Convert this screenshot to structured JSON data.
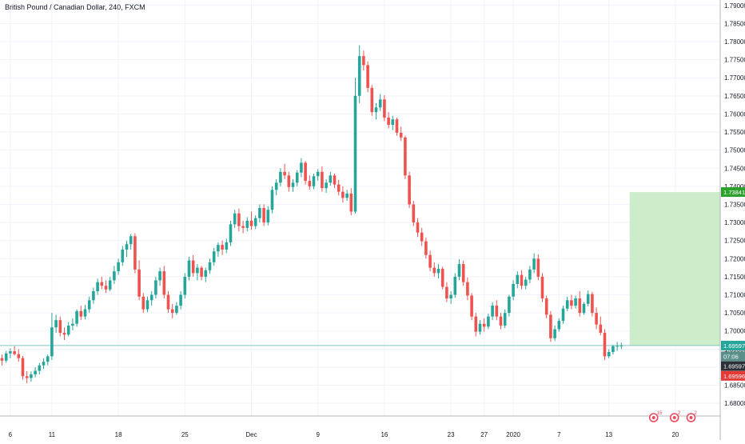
{
  "chart_title": "British Pound / Canadian Dollar, 240, FXCM",
  "colors": {
    "up": "#26a69a",
    "down": "#ef5350",
    "grid": "#f0f3fa",
    "axis": "#b2b5be",
    "text": "#131722",
    "zone": "#c8ebc4",
    "target": "#2ca02c",
    "event": "#e84a5f"
  },
  "chart_data": {
    "type": "candlestick",
    "title": "British Pound / Canadian Dollar, 240, FXCM",
    "ylim": [
      1.6765,
      1.7915
    ],
    "y_ticks": [
      "1.79000",
      "1.78500",
      "1.78000",
      "1.77500",
      "1.77000",
      "1.76500",
      "1.76000",
      "1.75500",
      "1.75000",
      "1.74500",
      "1.74000",
      "1.73500",
      "1.73000",
      "1.72500",
      "1.72000",
      "1.71500",
      "1.71000",
      "1.70500",
      "1.70000",
      "1.69500",
      "1.69000",
      "1.68500",
      "1.68000"
    ],
    "x_ticks": [
      {
        "label": "6",
        "index": 2
      },
      {
        "label": "11",
        "index": 12
      },
      {
        "label": "18",
        "index": 28
      },
      {
        "label": "25",
        "index": 44
      },
      {
        "label": "Dec",
        "index": 60
      },
      {
        "label": "9",
        "index": 76
      },
      {
        "label": "16",
        "index": 92
      },
      {
        "label": "23",
        "index": 108
      },
      {
        "label": "27",
        "index": 116
      },
      {
        "label": "2020",
        "index": 123
      },
      {
        "label": "7",
        "index": 134
      },
      {
        "label": "13",
        "index": 146
      },
      {
        "label": "20",
        "index": 162
      }
    ],
    "candle_count": 150,
    "candles": [
      [
        1.6925,
        1.6935,
        1.6905,
        1.6918
      ],
      [
        1.6918,
        1.6945,
        1.6912,
        1.6938
      ],
      [
        1.6938,
        1.6952,
        1.6925,
        1.6944
      ],
      [
        1.6944,
        1.6958,
        1.6932,
        1.6936
      ],
      [
        1.6936,
        1.695,
        1.6915,
        1.6925
      ],
      [
        1.6925,
        1.6931,
        1.6865,
        1.6875
      ],
      [
        1.6875,
        1.6889,
        1.6855,
        1.687
      ],
      [
        1.687,
        1.6888,
        1.686,
        1.688
      ],
      [
        1.688,
        1.69,
        1.6872,
        1.689
      ],
      [
        1.689,
        1.6912,
        1.688,
        1.6905
      ],
      [
        1.6905,
        1.6925,
        1.6895,
        1.6915
      ],
      [
        1.6915,
        1.6935,
        1.6905,
        1.693
      ],
      [
        1.693,
        1.705,
        1.692,
        1.701
      ],
      [
        1.701,
        1.7045,
        1.6995,
        1.703
      ],
      [
        1.703,
        1.704,
        1.6985,
        1.6995
      ],
      [
        1.6995,
        1.701,
        1.6975,
        1.699
      ],
      [
        1.699,
        1.7025,
        1.6985,
        1.7015
      ],
      [
        1.7015,
        1.7035,
        1.7002,
        1.702
      ],
      [
        1.702,
        1.706,
        1.7012,
        1.7055
      ],
      [
        1.7055,
        1.707,
        1.703,
        1.704
      ],
      [
        1.704,
        1.7072,
        1.7032,
        1.706
      ],
      [
        1.706,
        1.7095,
        1.705,
        1.7085
      ],
      [
        1.7085,
        1.712,
        1.7075,
        1.711
      ],
      [
        1.711,
        1.7145,
        1.71,
        1.7135
      ],
      [
        1.7135,
        1.715,
        1.7115,
        1.7125
      ],
      [
        1.7125,
        1.714,
        1.7105,
        1.7115
      ],
      [
        1.7115,
        1.715,
        1.711,
        1.714
      ],
      [
        1.714,
        1.718,
        1.713,
        1.7165
      ],
      [
        1.7165,
        1.72,
        1.7155,
        1.719
      ],
      [
        1.719,
        1.7235,
        1.718,
        1.7225
      ],
      [
        1.7225,
        1.725,
        1.7205,
        1.724
      ],
      [
        1.724,
        1.7268,
        1.7225,
        1.7262
      ],
      [
        1.7262,
        1.727,
        1.716,
        1.717
      ],
      [
        1.717,
        1.7195,
        1.7085,
        1.7095
      ],
      [
        1.7095,
        1.7105,
        1.705,
        1.706
      ],
      [
        1.706,
        1.7095,
        1.7052,
        1.7085
      ],
      [
        1.7085,
        1.711,
        1.707,
        1.71
      ],
      [
        1.71,
        1.715,
        1.709,
        1.714
      ],
      [
        1.714,
        1.7175,
        1.7125,
        1.7165
      ],
      [
        1.7165,
        1.718,
        1.709,
        1.71
      ],
      [
        1.71,
        1.711,
        1.705,
        1.706
      ],
      [
        1.706,
        1.7075,
        1.7035,
        1.705
      ],
      [
        1.705,
        1.708,
        1.7045,
        1.707
      ],
      [
        1.707,
        1.711,
        1.706,
        1.71
      ],
      [
        1.71,
        1.716,
        1.709,
        1.715
      ],
      [
        1.715,
        1.7205,
        1.714,
        1.7195
      ],
      [
        1.7195,
        1.721,
        1.715,
        1.716
      ],
      [
        1.716,
        1.7185,
        1.714,
        1.7175
      ],
      [
        1.7175,
        1.718,
        1.714,
        1.715
      ],
      [
        1.715,
        1.7175,
        1.7135,
        1.7168
      ],
      [
        1.7168,
        1.72,
        1.7158,
        1.719
      ],
      [
        1.719,
        1.723,
        1.718,
        1.722
      ],
      [
        1.722,
        1.7245,
        1.7205,
        1.7238
      ],
      [
        1.7238,
        1.725,
        1.721,
        1.7225
      ],
      [
        1.7225,
        1.7255,
        1.7215,
        1.7245
      ],
      [
        1.7245,
        1.7305,
        1.7235,
        1.7295
      ],
      [
        1.7295,
        1.7335,
        1.7285,
        1.7325
      ],
      [
        1.7325,
        1.7338,
        1.7275,
        1.729
      ],
      [
        1.729,
        1.7305,
        1.727,
        1.7285
      ],
      [
        1.7285,
        1.7315,
        1.7275,
        1.7305
      ],
      [
        1.7305,
        1.733,
        1.728,
        1.729
      ],
      [
        1.729,
        1.732,
        1.7282,
        1.7312
      ],
      [
        1.7312,
        1.735,
        1.73,
        1.734
      ],
      [
        1.734,
        1.735,
        1.729,
        1.73
      ],
      [
        1.73,
        1.7345,
        1.7292,
        1.7335
      ],
      [
        1.7335,
        1.74,
        1.7325,
        1.739
      ],
      [
        1.739,
        1.742,
        1.7375,
        1.741
      ],
      [
        1.741,
        1.745,
        1.74,
        1.744
      ],
      [
        1.744,
        1.7462,
        1.742,
        1.743
      ],
      [
        1.743,
        1.744,
        1.7385,
        1.7398
      ],
      [
        1.7398,
        1.742,
        1.7385,
        1.741
      ],
      [
        1.741,
        1.7445,
        1.74,
        1.7438
      ],
      [
        1.7438,
        1.7478,
        1.7425,
        1.7465
      ],
      [
        1.7465,
        1.747,
        1.7405,
        1.7415
      ],
      [
        1.7415,
        1.743,
        1.739,
        1.74
      ],
      [
        1.74,
        1.7435,
        1.7392,
        1.7428
      ],
      [
        1.7428,
        1.7448,
        1.7415,
        1.744
      ],
      [
        1.744,
        1.7455,
        1.7385,
        1.7395
      ],
      [
        1.7395,
        1.742,
        1.7382,
        1.741
      ],
      [
        1.741,
        1.744,
        1.7402,
        1.743
      ],
      [
        1.743,
        1.7435,
        1.7395,
        1.7405
      ],
      [
        1.7405,
        1.7418,
        1.7375,
        1.7385
      ],
      [
        1.7385,
        1.74,
        1.7355,
        1.7368
      ],
      [
        1.7368,
        1.739,
        1.736,
        1.738
      ],
      [
        1.738,
        1.7395,
        1.732,
        1.733
      ],
      [
        1.733,
        1.77,
        1.7325,
        1.765
      ],
      [
        1.765,
        1.779,
        1.763,
        1.776
      ],
      [
        1.776,
        1.7775,
        1.772,
        1.7735
      ],
      [
        1.7735,
        1.7745,
        1.766,
        1.7672
      ],
      [
        1.7672,
        1.768,
        1.7595,
        1.7605
      ],
      [
        1.7605,
        1.763,
        1.7585,
        1.7618
      ],
      [
        1.7618,
        1.7655,
        1.7608,
        1.764
      ],
      [
        1.764,
        1.7652,
        1.758,
        1.759
      ],
      [
        1.759,
        1.7605,
        1.756,
        1.757
      ],
      [
        1.757,
        1.7595,
        1.7555,
        1.7585
      ],
      [
        1.7585,
        1.759,
        1.754,
        1.7548
      ],
      [
        1.7548,
        1.7565,
        1.7525,
        1.7535
      ],
      [
        1.7535,
        1.754,
        1.742,
        1.743
      ],
      [
        1.743,
        1.744,
        1.734,
        1.735
      ],
      [
        1.735,
        1.736,
        1.729,
        1.73
      ],
      [
        1.73,
        1.7312,
        1.726,
        1.7272
      ],
      [
        1.7272,
        1.7285,
        1.7235,
        1.7248
      ],
      [
        1.7248,
        1.7258,
        1.72,
        1.721
      ],
      [
        1.721,
        1.7222,
        1.7165,
        1.7175
      ],
      [
        1.7175,
        1.719,
        1.715,
        1.716
      ],
      [
        1.716,
        1.7185,
        1.7145,
        1.7172
      ],
      [
        1.7172,
        1.7178,
        1.7115,
        1.7122
      ],
      [
        1.7122,
        1.7135,
        1.708,
        1.709
      ],
      [
        1.709,
        1.711,
        1.7075,
        1.71
      ],
      [
        1.71,
        1.716,
        1.7092,
        1.715
      ],
      [
        1.715,
        1.7198,
        1.714,
        1.7185
      ],
      [
        1.7185,
        1.7195,
        1.7125,
        1.7135
      ],
      [
        1.7135,
        1.7148,
        1.7085,
        1.7098
      ],
      [
        1.7098,
        1.7105,
        1.703,
        1.704
      ],
      [
        1.704,
        1.705,
        1.6985,
        1.6998
      ],
      [
        1.6998,
        1.703,
        1.699,
        1.702
      ],
      [
        1.702,
        1.7035,
        1.6998,
        1.7012
      ],
      [
        1.7012,
        1.7048,
        1.7005,
        1.704
      ],
      [
        1.704,
        1.708,
        1.703,
        1.707
      ],
      [
        1.707,
        1.7085,
        1.703,
        1.704
      ],
      [
        1.704,
        1.705,
        1.7005,
        1.7015
      ],
      [
        1.7015,
        1.706,
        1.7008,
        1.705
      ],
      [
        1.705,
        1.71,
        1.704,
        1.7095
      ],
      [
        1.7095,
        1.714,
        1.7085,
        1.713
      ],
      [
        1.713,
        1.7165,
        1.7118,
        1.7155
      ],
      [
        1.7155,
        1.7168,
        1.7115,
        1.7125
      ],
      [
        1.7125,
        1.715,
        1.7115,
        1.7142
      ],
      [
        1.7142,
        1.718,
        1.7132,
        1.717
      ],
      [
        1.717,
        1.7215,
        1.716,
        1.72
      ],
      [
        1.72,
        1.7212,
        1.714,
        1.715
      ],
      [
        1.715,
        1.716,
        1.708,
        1.709
      ],
      [
        1.709,
        1.7098,
        1.7035,
        1.7045
      ],
      [
        1.7045,
        1.7055,
        1.697,
        1.698
      ],
      [
        1.698,
        1.7015,
        1.6972,
        1.7005
      ],
      [
        1.7005,
        1.7035,
        1.6998,
        1.7028
      ],
      [
        1.7028,
        1.707,
        1.702,
        1.7062
      ],
      [
        1.7062,
        1.7095,
        1.7055,
        1.7085
      ],
      [
        1.7085,
        1.71,
        1.706,
        1.707
      ],
      [
        1.707,
        1.7098,
        1.7062,
        1.709
      ],
      [
        1.709,
        1.711,
        1.704,
        1.705
      ],
      [
        1.705,
        1.708,
        1.7045,
        1.7075
      ],
      [
        1.7075,
        1.7112,
        1.7068,
        1.7102
      ],
      [
        1.7102,
        1.7108,
        1.704,
        1.705
      ],
      [
        1.705,
        1.7065,
        1.7005,
        1.7018
      ],
      [
        1.7018,
        1.704,
        1.6988,
        1.6995
      ],
      [
        1.6995,
        1.7005,
        1.692,
        1.693
      ],
      [
        1.693,
        1.695,
        1.6925,
        1.6942
      ],
      [
        1.6942,
        1.6962,
        1.6935,
        1.6958
      ],
      [
        1.6958,
        1.697,
        1.6945,
        1.6959
      ],
      [
        1.6959,
        1.6968,
        1.695,
        1.696
      ]
    ],
    "horizontal_line": 1.696,
    "target_zone": {
      "from_index": 151,
      "to_index": 186,
      "bottom": 1.696,
      "top": 1.7384
    },
    "price_labels": [
      {
        "label": "1.73841",
        "value": 1.73841,
        "role": "target"
      },
      {
        "label": "1.69597",
        "value": 1.69597,
        "role": "entry"
      },
      {
        "label": "07:06",
        "value": 1.693,
        "role": "countdown"
      },
      {
        "label": "1.69597",
        "value": 1.6903,
        "role": "bid"
      },
      {
        "label": "1.69596",
        "value": 1.6876,
        "role": "ask"
      }
    ],
    "event_markers": [
      {
        "index": 151,
        "count": "15"
      },
      {
        "index": 156,
        "count": "2"
      },
      {
        "index": 160,
        "count": "2"
      }
    ]
  }
}
